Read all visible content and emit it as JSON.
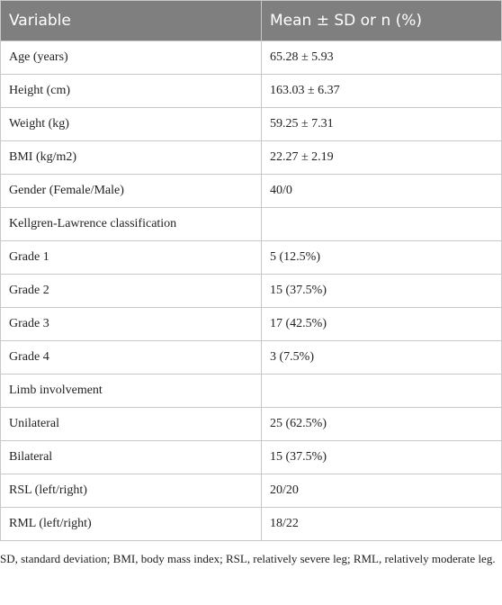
{
  "table": {
    "header": [
      "Variable",
      "Mean ± SD or n (%)"
    ],
    "rows": [
      [
        "Age (years)",
        "65.28 ± 5.93"
      ],
      [
        "Height (cm)",
        "163.03 ± 6.37"
      ],
      [
        "Weight (kg)",
        "59.25 ± 7.31"
      ],
      [
        "BMI (kg/m2)",
        "22.27 ± 2.19"
      ],
      [
        "Gender (Female/Male)",
        "40/0"
      ],
      [
        "Kellgren-Lawrence classification"
      ],
      [
        "Grade 1",
        "5 (12.5%)"
      ],
      [
        "Grade 2",
        "15 (37.5%)"
      ],
      [
        "Grade 3",
        "17 (42.5%)"
      ],
      [
        "Grade 4",
        "3 (7.5%)"
      ],
      [
        "Limb involvement"
      ],
      [
        "Unilateral",
        "25 (62.5%)"
      ],
      [
        "Bilateral",
        "15 (37.5%)"
      ],
      [
        "RSL (left/right)",
        "20/20"
      ],
      [
        "RML (left/right)",
        "18/22"
      ]
    ]
  },
  "footnote": "SD, standard deviation; BMI, body mass index; RSL, relatively severe leg; RML, relatively moderate leg."
}
